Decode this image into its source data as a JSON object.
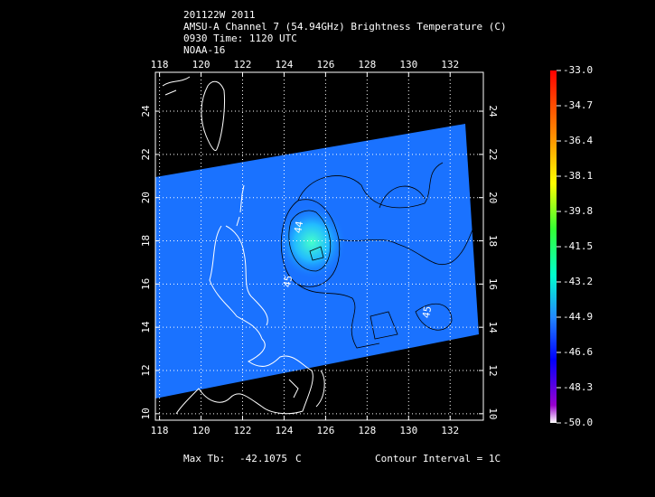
{
  "header": {
    "lines": [
      "201122W 2011",
      "AMSU-A Channel 7 (54.94GHz) Brightness Temperature (C)",
      "0930 Time: 1120 UTC",
      "NOAA-16"
    ]
  },
  "map": {
    "lon_range": [
      117.8,
      133.6
    ],
    "lat_range": [
      9.7,
      25.8
    ],
    "lon_ticks": [
      118,
      120,
      122,
      124,
      126,
      128,
      130,
      132
    ],
    "lat_ticks": [
      10,
      12,
      14,
      16,
      18,
      20,
      22,
      24
    ],
    "contour_labels": [
      "44",
      "45",
      "45"
    ]
  },
  "colorbar": {
    "range": [
      -50,
      -33
    ],
    "ticks": [
      {
        "value": -33,
        "label": "-33.0"
      },
      {
        "value": -34.7,
        "label": "-34.7"
      },
      {
        "value": -36.4,
        "label": "-36.4"
      },
      {
        "value": -38.1,
        "label": "-38.1"
      },
      {
        "value": -39.8,
        "label": "-39.8"
      },
      {
        "value": -41.5,
        "label": "-41.5"
      },
      {
        "value": -43.2,
        "label": "-43.2"
      },
      {
        "value": -44.9,
        "label": "-44.9"
      },
      {
        "value": -46.6,
        "label": "-46.6"
      },
      {
        "value": -48.3,
        "label": "-48.3"
      },
      {
        "value": -50,
        "label": "-50.0"
      }
    ]
  },
  "footer": {
    "max_label": "Max Tb:",
    "max_value": -42.1075,
    "max_unit": "C",
    "contour_interval": "Contour Interval = 1C"
  }
}
